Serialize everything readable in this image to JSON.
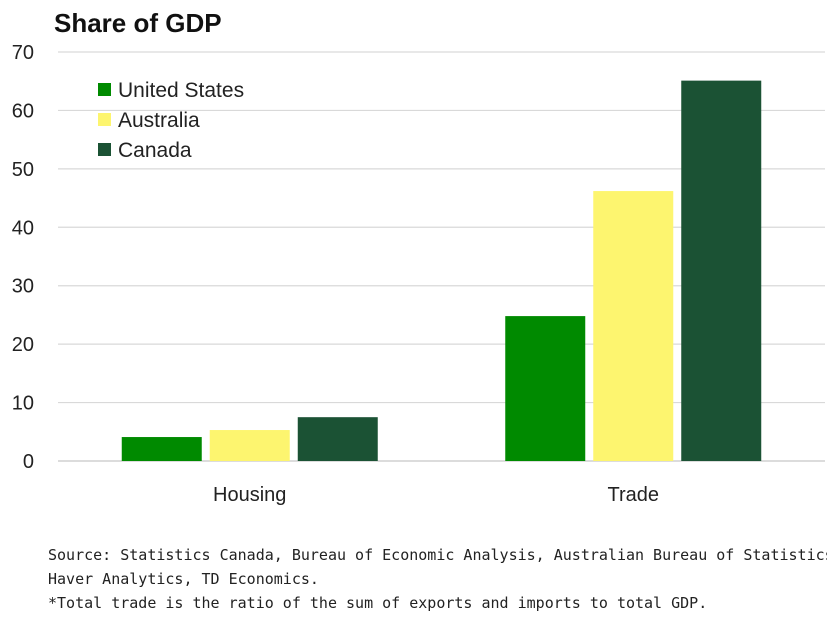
{
  "chart_data": {
    "type": "bar",
    "title": "Share of GDP",
    "categories": [
      "Housing",
      "Trade"
    ],
    "series": [
      {
        "name": "United States",
        "color": "#008a00",
        "values": [
          4.1,
          24.8
        ]
      },
      {
        "name": "Australia",
        "color": "#fdf56f",
        "values": [
          5.3,
          46.2
        ]
      },
      {
        "name": "Canada",
        "color": "#1b5234",
        "values": [
          7.5,
          65.1
        ]
      }
    ],
    "ylim": [
      0,
      70
    ],
    "yticks": [
      "0",
      "10",
      "20",
      "30",
      "40",
      "50",
      "60",
      "70"
    ],
    "grid": true,
    "legend": "top-left"
  },
  "notes": {
    "source_line1": "Source: Statistics Canada, Bureau of Economic Analysis, Australian Bureau of Statistics,",
    "source_line2": "Haver Analytics, TD Economics.",
    "footnote": "*Total trade is the ratio of the sum of exports and imports to total GDP."
  }
}
